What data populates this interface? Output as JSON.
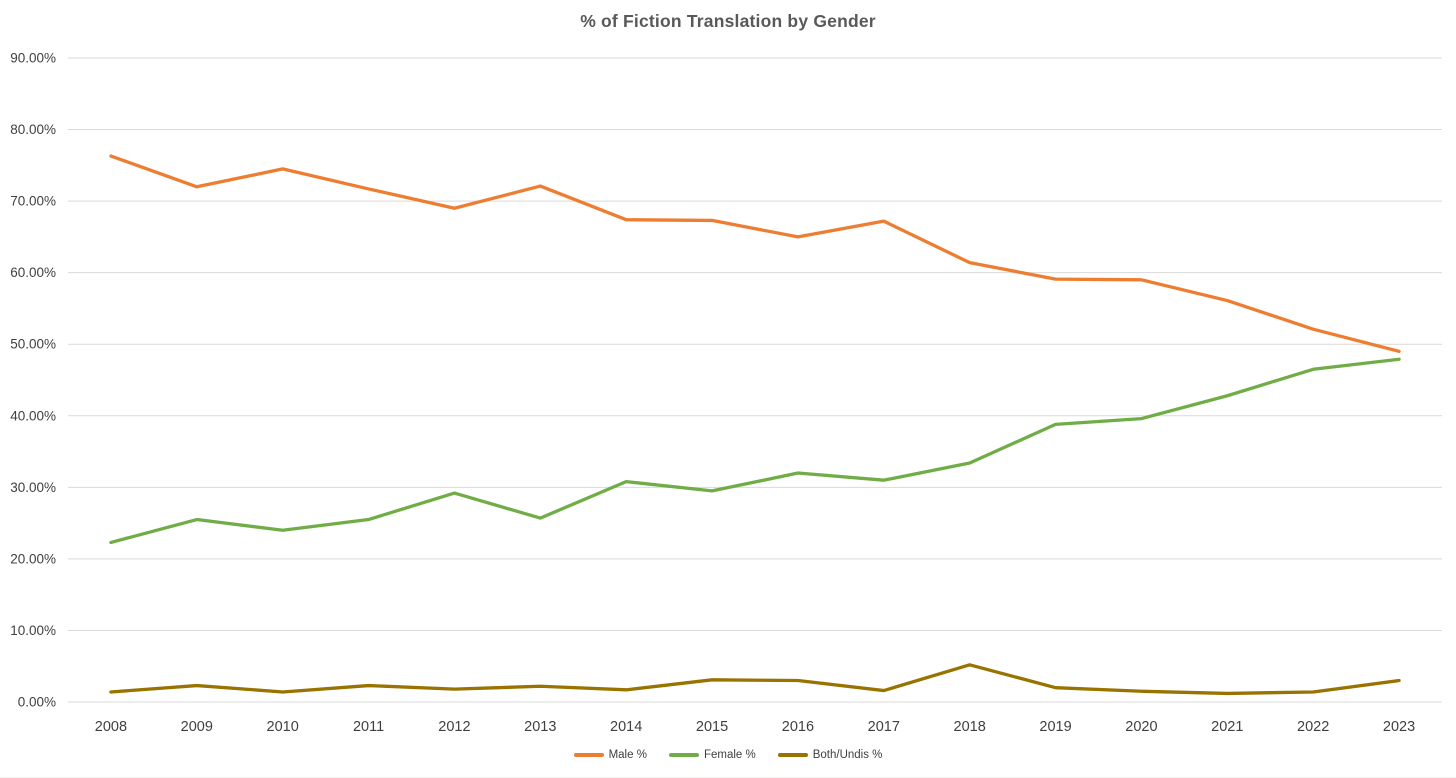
{
  "chart_data": {
    "type": "line",
    "title": "% of Fiction Translation by Gender",
    "categories": [
      "2008",
      "2009",
      "2010",
      "2011",
      "2012",
      "2013",
      "2014",
      "2015",
      "2016",
      "2017",
      "2018",
      "2019",
      "2020",
      "2021",
      "2022",
      "2023"
    ],
    "series": [
      {
        "name": "Male %",
        "color": "#ED7D31",
        "values": [
          76.3,
          72.0,
          74.5,
          71.7,
          69.0,
          72.1,
          67.4,
          67.3,
          65.0,
          67.2,
          61.4,
          59.1,
          59.0,
          56.1,
          52.1,
          49.0
        ]
      },
      {
        "name": "Female %",
        "color": "#70AD47",
        "values": [
          22.3,
          25.5,
          24.0,
          25.5,
          29.2,
          25.7,
          30.8,
          29.5,
          32.0,
          31.0,
          33.4,
          38.8,
          39.6,
          42.8,
          46.5,
          47.9
        ]
      },
      {
        "name": "Both/Undis %",
        "color": "#997300",
        "values": [
          1.4,
          2.3,
          1.4,
          2.3,
          1.8,
          2.2,
          1.7,
          3.1,
          3.0,
          1.6,
          5.2,
          2.0,
          1.5,
          1.2,
          1.4,
          3.0
        ]
      }
    ],
    "y_ticks": [
      "0.00%",
      "10.00%",
      "20.00%",
      "30.00%",
      "40.00%",
      "50.00%",
      "60.00%",
      "70.00%",
      "80.00%",
      "90.00%"
    ],
    "ylim": [
      0,
      90
    ],
    "xlabel": "",
    "ylabel": "",
    "grid": true,
    "legend_position": "bottom"
  },
  "colors": {
    "gridline": "#D9D9D9",
    "axis_text": "#404040",
    "title_text": "#595959",
    "background": "#FFFFFF"
  }
}
